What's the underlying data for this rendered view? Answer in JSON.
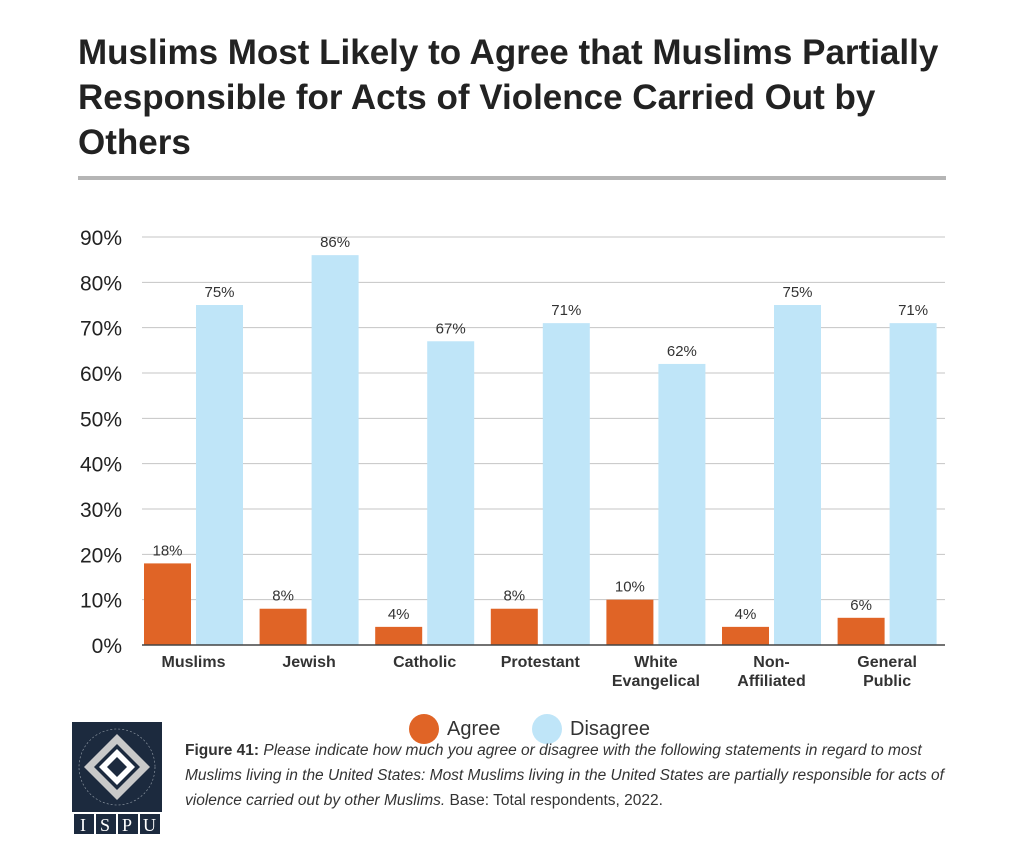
{
  "chart_data": {
    "type": "bar",
    "title": "Muslims Most Likely to Agree that Muslims Partially Responsible for Acts of Violence Carried Out by Others",
    "categories": [
      [
        "Muslims"
      ],
      [
        "Jewish"
      ],
      [
        "Catholic"
      ],
      [
        "Protestant"
      ],
      [
        "White",
        "Evangelical"
      ],
      [
        "Non-",
        "Affiliated"
      ],
      [
        "General",
        "Public"
      ]
    ],
    "series": [
      {
        "name": "Agree",
        "color": "#e06426",
        "values": [
          18,
          8,
          4,
          8,
          10,
          4,
          6
        ]
      },
      {
        "name": "Disagree",
        "color": "#bfe5f8",
        "values": [
          75,
          86,
          67,
          71,
          62,
          75,
          71
        ]
      }
    ],
    "yticks": [
      "0%",
      "10%",
      "20%",
      "30%",
      "40%",
      "50%",
      "60%",
      "70%",
      "80%",
      "90%"
    ],
    "ylim": [
      0,
      90
    ],
    "grid": true,
    "legend_position": "bottom"
  },
  "caption": {
    "label": "Figure 41:",
    "italic": "Please indicate how much you agree or disagree with the following statements in regard to most Muslims living in the United States: Most Muslims living in the United States are partially responsible for acts of violence carried out by other Muslims.",
    "rest": " Base: Total respondents, 2022."
  },
  "logo": {
    "text": "ISPU",
    "ring_text": "INSTITUTE FOR SOCIAL POLICY AND UNDERSTANDING"
  }
}
